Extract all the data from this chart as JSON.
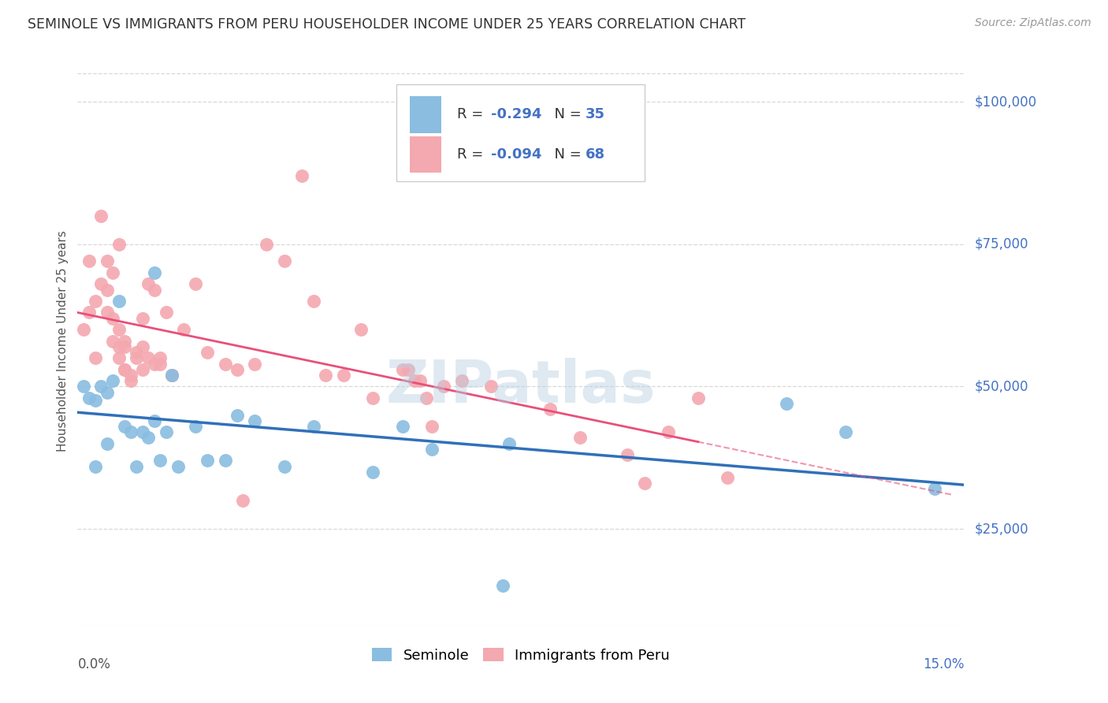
{
  "title": "SEMINOLE VS IMMIGRANTS FROM PERU HOUSEHOLDER INCOME UNDER 25 YEARS CORRELATION CHART",
  "source": "Source: ZipAtlas.com",
  "ylabel": "Householder Income Under 25 years",
  "ytick_values": [
    25000,
    50000,
    75000,
    100000
  ],
  "ytick_labels": [
    "$25,000",
    "$50,000",
    "$75,000",
    "$100,000"
  ],
  "xmin": 0.0,
  "xmax": 0.15,
  "ymin": 8000,
  "ymax": 108000,
  "color_seminole": "#8abde0",
  "color_peru": "#f4a8b0",
  "color_seminole_line": "#3070b8",
  "color_peru_line": "#e8507a",
  "watermark": "ZIPatlas",
  "background_color": "#ffffff",
  "grid_color": "#d8d8d8",
  "seminole_x": [
    0.001,
    0.002,
    0.003,
    0.004,
    0.005,
    0.005,
    0.006,
    0.007,
    0.008,
    0.009,
    0.01,
    0.011,
    0.012,
    0.013,
    0.013,
    0.014,
    0.015,
    0.016,
    0.017,
    0.02,
    0.022,
    0.025,
    0.027,
    0.03,
    0.035,
    0.04,
    0.05,
    0.055,
    0.06,
    0.072,
    0.073,
    0.12,
    0.13,
    0.145,
    0.003
  ],
  "seminole_y": [
    50000,
    48000,
    47500,
    50000,
    49000,
    40000,
    51000,
    65000,
    43000,
    42000,
    36000,
    42000,
    41000,
    44000,
    70000,
    37000,
    42000,
    52000,
    36000,
    43000,
    37000,
    37000,
    45000,
    44000,
    36000,
    43000,
    35000,
    43000,
    39000,
    15000,
    40000,
    47000,
    42000,
    32000,
    36000
  ],
  "peru_x": [
    0.001,
    0.002,
    0.002,
    0.003,
    0.003,
    0.004,
    0.004,
    0.005,
    0.005,
    0.005,
    0.006,
    0.006,
    0.006,
    0.007,
    0.007,
    0.007,
    0.007,
    0.008,
    0.008,
    0.008,
    0.008,
    0.009,
    0.009,
    0.01,
    0.01,
    0.011,
    0.011,
    0.011,
    0.012,
    0.012,
    0.013,
    0.013,
    0.014,
    0.014,
    0.015,
    0.016,
    0.016,
    0.018,
    0.02,
    0.022,
    0.025,
    0.027,
    0.028,
    0.03,
    0.032,
    0.035,
    0.038,
    0.04,
    0.042,
    0.045,
    0.048,
    0.05,
    0.055,
    0.056,
    0.057,
    0.058,
    0.059,
    0.06,
    0.062,
    0.065,
    0.07,
    0.08,
    0.085,
    0.093,
    0.096,
    0.1,
    0.105,
    0.11
  ],
  "peru_y": [
    60000,
    63000,
    72000,
    55000,
    65000,
    68000,
    80000,
    72000,
    63000,
    67000,
    58000,
    62000,
    70000,
    75000,
    57000,
    55000,
    60000,
    58000,
    53000,
    57000,
    53000,
    52000,
    51000,
    56000,
    55000,
    53000,
    57000,
    62000,
    55000,
    68000,
    54000,
    67000,
    54000,
    55000,
    63000,
    52000,
    52000,
    60000,
    68000,
    56000,
    54000,
    53000,
    30000,
    54000,
    75000,
    72000,
    87000,
    65000,
    52000,
    52000,
    60000,
    48000,
    53000,
    53000,
    51000,
    51000,
    48000,
    43000,
    50000,
    51000,
    50000,
    46000,
    41000,
    38000,
    33000,
    42000,
    48000,
    34000
  ]
}
